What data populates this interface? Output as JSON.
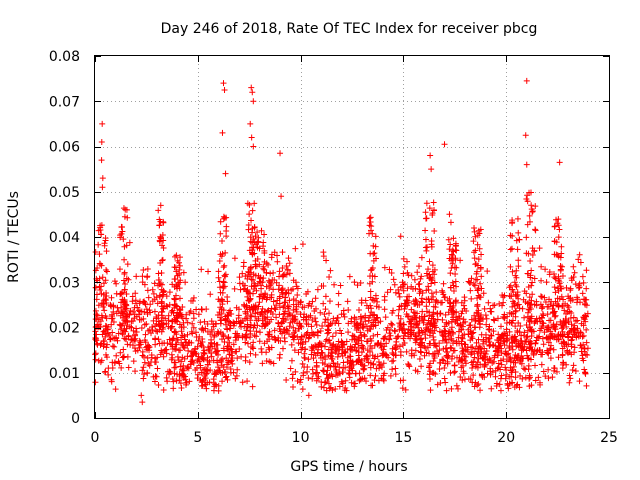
{
  "chart_data": {
    "type": "scatter",
    "title": "Day 246 of 2018, Rate Of TEC Index for receiver pbcg",
    "xlabel": "GPS time / hours",
    "ylabel": "ROTI / TECUs",
    "xlim": [
      0,
      25
    ],
    "ylim": [
      0,
      0.08
    ],
    "grid": true,
    "marker": "plus",
    "color": "#ff0000",
    "x_ticks": [
      0,
      5,
      10,
      15,
      20,
      25
    ],
    "x_tick_labels": [
      "0",
      "5",
      "10",
      "15",
      "20",
      "25"
    ],
    "y_ticks": [
      0,
      0.01,
      0.02,
      0.03,
      0.04,
      0.05,
      0.06,
      0.07,
      0.08
    ],
    "y_tick_labels": [
      "0",
      "0.01",
      "0.02",
      "0.03",
      "0.04",
      "0.05",
      "0.06",
      "0.07",
      "0.08"
    ],
    "highlights": [
      {
        "x": 0.35,
        "y": 0.065
      },
      {
        "x": 0.33,
        "y": 0.061
      },
      {
        "x": 0.32,
        "y": 0.057
      },
      {
        "x": 0.38,
        "y": 0.053
      },
      {
        "x": 0.36,
        "y": 0.051
      },
      {
        "x": 6.25,
        "y": 0.074
      },
      {
        "x": 6.3,
        "y": 0.0725
      },
      {
        "x": 6.2,
        "y": 0.063
      },
      {
        "x": 6.35,
        "y": 0.054
      },
      {
        "x": 7.6,
        "y": 0.073
      },
      {
        "x": 7.65,
        "y": 0.072
      },
      {
        "x": 7.7,
        "y": 0.07
      },
      {
        "x": 7.55,
        "y": 0.065
      },
      {
        "x": 7.62,
        "y": 0.062
      },
      {
        "x": 7.7,
        "y": 0.06
      },
      {
        "x": 9.0,
        "y": 0.0585
      },
      {
        "x": 9.05,
        "y": 0.049
      },
      {
        "x": 16.3,
        "y": 0.058
      },
      {
        "x": 16.35,
        "y": 0.055
      },
      {
        "x": 17.0,
        "y": 0.0605
      },
      {
        "x": 21.0,
        "y": 0.0745
      },
      {
        "x": 20.95,
        "y": 0.0625
      },
      {
        "x": 21.0,
        "y": 0.056
      },
      {
        "x": 22.6,
        "y": 0.0565
      },
      {
        "x": 10.4,
        "y": 0.005
      },
      {
        "x": 2.3,
        "y": 0.0035
      },
      {
        "x": 2.25,
        "y": 0.005
      }
    ],
    "bursts": [
      {
        "x": 0.3,
        "w": 0.6,
        "y": 0.044
      },
      {
        "x": 1.4,
        "w": 0.4,
        "y": 0.048
      },
      {
        "x": 3.2,
        "w": 0.3,
        "y": 0.047
      },
      {
        "x": 4.0,
        "w": 0.3,
        "y": 0.036
      },
      {
        "x": 6.2,
        "w": 0.4,
        "y": 0.045
      },
      {
        "x": 7.6,
        "w": 0.4,
        "y": 0.048
      },
      {
        "x": 8.0,
        "w": 0.6,
        "y": 0.042
      },
      {
        "x": 13.5,
        "w": 0.4,
        "y": 0.045
      },
      {
        "x": 16.3,
        "w": 0.5,
        "y": 0.048
      },
      {
        "x": 17.4,
        "w": 0.4,
        "y": 0.046
      },
      {
        "x": 20.4,
        "w": 0.5,
        "y": 0.045
      },
      {
        "x": 21.2,
        "w": 0.5,
        "y": 0.05
      },
      {
        "x": 22.5,
        "w": 0.4,
        "y": 0.044
      },
      {
        "x": 18.6,
        "w": 0.4,
        "y": 0.042
      }
    ]
  }
}
